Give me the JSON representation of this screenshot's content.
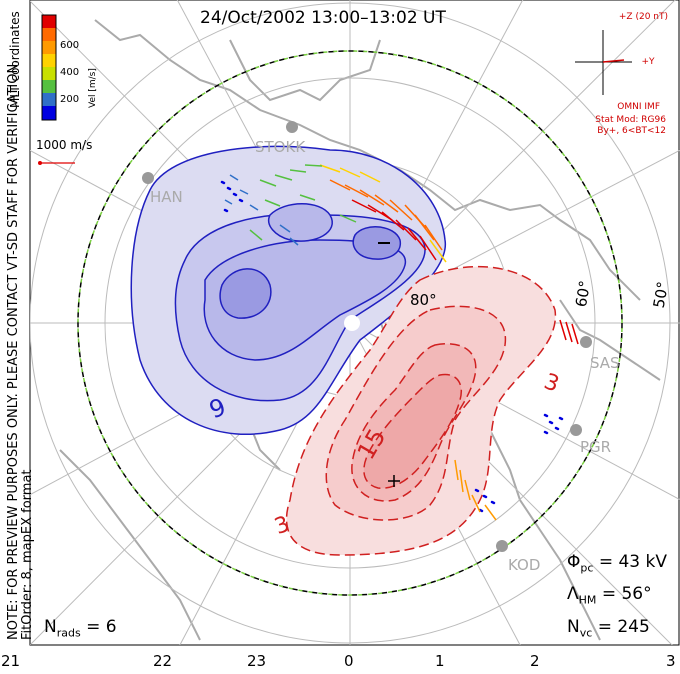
{
  "title": "24/Oct/2002 13:00–13:02 UT",
  "colorbar": {
    "label": "Vel [m/s]",
    "ticks": [
      "600",
      "400",
      "200"
    ],
    "colors": [
      "#e00000",
      "#ff6a00",
      "#ff9a00",
      "#ffd200",
      "#c8e000",
      "#55c040",
      "#3070c8",
      "#0000e0"
    ]
  },
  "coord_label": "MLT coordinates",
  "notice_line1": "NOTE: FOR PREVIEW PURPOSES ONLY. PLEASE CONTACT VT-SD STAFF FOR VERIFICATION.",
  "notice_line2": "FitOrder: 8, mapEX format",
  "reference_vector": "1000 m/s",
  "imf": {
    "z_label": "+Z (20 nT)",
    "y_label": "+Y",
    "source": "OMNI IMF",
    "model": "Stat Mod: RG96",
    "model_params": "By+, 6<BT<12"
  },
  "stations": [
    "STOKK",
    "HAN",
    "SAS",
    "PGR",
    "KOD"
  ],
  "latitude_labels": [
    "80°",
    "60°",
    "50°"
  ],
  "contour_labels": [
    "9",
    "3",
    "15",
    "3"
  ],
  "stats": {
    "phi_pc": "= 43 kV",
    "lambda_hm": "= 56°",
    "n_vc": "= 245",
    "n_rads": "= 6"
  },
  "mlt_ticks": [
    "21",
    "22",
    "23",
    "0",
    "1",
    "2",
    "3"
  ],
  "colors": {
    "negative_cell": "#2020c0",
    "positive_cell": "#d02020",
    "grid": "#bbbbbb",
    "coastline": "#aaaaaa",
    "boundary_green": "#7ad040"
  }
}
